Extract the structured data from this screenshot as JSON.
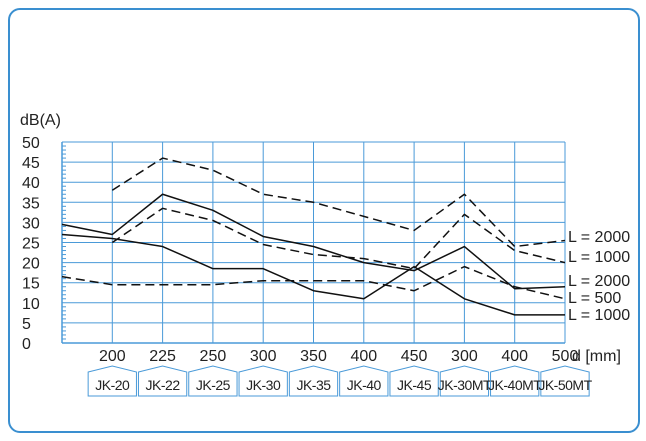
{
  "chart_data": {
    "type": "line",
    "ylabel": "dB(A)",
    "xlabel": "d [mm]",
    "ylim": [
      0,
      50
    ],
    "yticks": [
      0,
      5,
      10,
      15,
      20,
      25,
      30,
      35,
      40,
      45,
      50
    ],
    "x_tick_labels": [
      "200",
      "225",
      "250",
      "300",
      "350",
      "400",
      "450",
      "300",
      "400",
      "500"
    ],
    "models": [
      "JK-20",
      "JK-22",
      "JK-25",
      "JK-30",
      "JK-35",
      "JK-40",
      "JK-45",
      "JK-30MT",
      "JK-40MT",
      "JK-50MT"
    ],
    "grid": true,
    "series": [
      {
        "name": "L = 2000",
        "style": "dashed",
        "values": [
          null,
          38,
          46,
          43,
          37,
          35,
          31.5,
          28,
          37,
          24
        ]
      },
      {
        "name": "L = 1000",
        "style": "dashed",
        "values": [
          null,
          25,
          33.5,
          30.5,
          24.5,
          22,
          21,
          18.5,
          32,
          23
        ]
      },
      {
        "name": "L = 2000",
        "style": "solid",
        "values": [
          29.5,
          27,
          37,
          33,
          26.5,
          24,
          20,
          18,
          24,
          13.5
        ]
      },
      {
        "name": "L = 500",
        "style": "dashed",
        "values": [
          16.5,
          14.5,
          14.5,
          14.5,
          15.5,
          15.5,
          15.5,
          13,
          19,
          14
        ]
      },
      {
        "name": "L = 1000",
        "style": "solid",
        "values": [
          27,
          26,
          24,
          18.5,
          18.5,
          13,
          11,
          19,
          11,
          7
        ]
      }
    ],
    "end_values": [
      25.5,
      20,
      14,
      11,
      7
    ],
    "line_color": "#111111",
    "grid_color": "#4a9ad8"
  }
}
